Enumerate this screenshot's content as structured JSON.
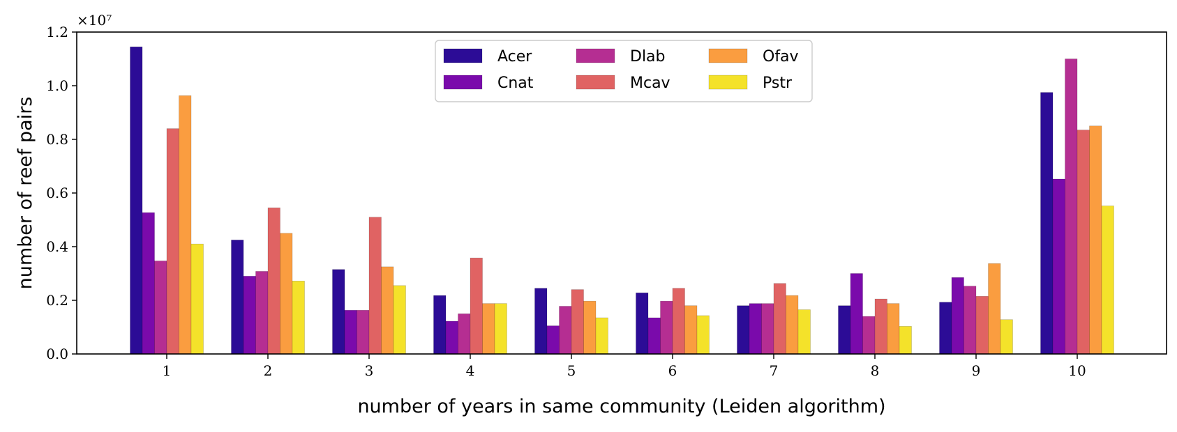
{
  "chart_data": {
    "type": "bar",
    "title": "",
    "xlabel": "number of years in same community (Leiden algorithm)",
    "ylabel": "number of reef pairs",
    "y_scale_label": "×10⁷",
    "y_multiplier": 10000000,
    "ylim": [
      0,
      1.2
    ],
    "yticks": [
      "0.0",
      "0.2",
      "0.4",
      "0.6",
      "0.8",
      "1.0",
      "1.2"
    ],
    "categories": [
      "1",
      "2",
      "3",
      "4",
      "5",
      "6",
      "7",
      "8",
      "9",
      "10"
    ],
    "legend_position": "top-center",
    "legend_columns": 3,
    "grid": false,
    "series": [
      {
        "name": "Acer",
        "color": "#2c0c96",
        "values": [
          1.145,
          0.425,
          0.315,
          0.218,
          0.245,
          0.228,
          0.18,
          0.18,
          0.193,
          0.975
        ]
      },
      {
        "name": "Cnat",
        "color": "#7a0aab",
        "values": [
          0.527,
          0.29,
          0.163,
          0.122,
          0.105,
          0.135,
          0.188,
          0.3,
          0.285,
          0.652
        ]
      },
      {
        "name": "Dlab",
        "color": "#b52e92",
        "values": [
          0.347,
          0.308,
          0.163,
          0.15,
          0.178,
          0.197,
          0.188,
          0.14,
          0.253,
          1.1
        ]
      },
      {
        "name": "Mcav",
        "color": "#e06363",
        "values": [
          0.84,
          0.545,
          0.51,
          0.358,
          0.24,
          0.245,
          0.263,
          0.205,
          0.215,
          0.835
        ]
      },
      {
        "name": "Ofav",
        "color": "#fa9d40",
        "values": [
          0.963,
          0.45,
          0.325,
          0.188,
          0.197,
          0.18,
          0.218,
          0.188,
          0.337,
          0.85
        ]
      },
      {
        "name": "Pstr",
        "color": "#f4e22a",
        "values": [
          0.41,
          0.272,
          0.255,
          0.188,
          0.135,
          0.143,
          0.165,
          0.103,
          0.128,
          0.552
        ]
      }
    ]
  }
}
